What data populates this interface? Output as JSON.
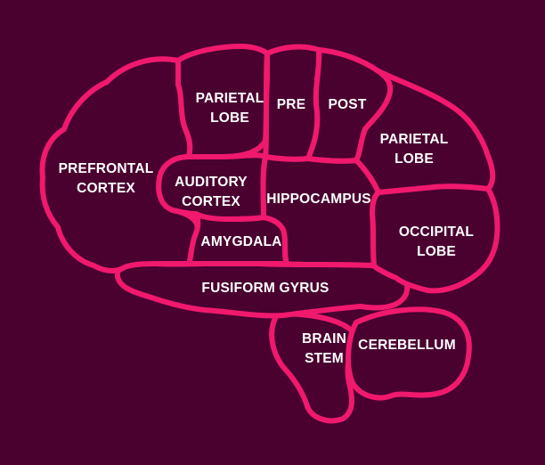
{
  "colors": {
    "background": "#4a0130",
    "outline": "#f0196e",
    "text": "#ffffff"
  },
  "regions": {
    "prefrontal_cortex": {
      "line1": "PREFRONTAL",
      "line2": "CORTEX"
    },
    "parietal_lobe_top": {
      "line1": "PARIETAL",
      "line2": "LOBE"
    },
    "pre": {
      "line1": "PRE"
    },
    "post": {
      "line1": "POST"
    },
    "parietal_lobe_right": {
      "line1": "PARIETAL",
      "line2": "LOBE"
    },
    "auditory_cortex": {
      "line1": "AUDITORY",
      "line2": "CORTEX"
    },
    "hippocampus": {
      "line1": "HIPPOCAMPUS"
    },
    "amygdala": {
      "line1": "AMYGDALA"
    },
    "occipital_lobe": {
      "line1": "OCCIPITAL",
      "line2": "LOBE"
    },
    "fusiform_gyrus": {
      "line1": "FUSIFORM GYRUS"
    },
    "brain_stem": {
      "line1": "BRAIN",
      "line2": "STEM"
    },
    "cerebellum": {
      "line1": "CEREBELLUM"
    }
  }
}
